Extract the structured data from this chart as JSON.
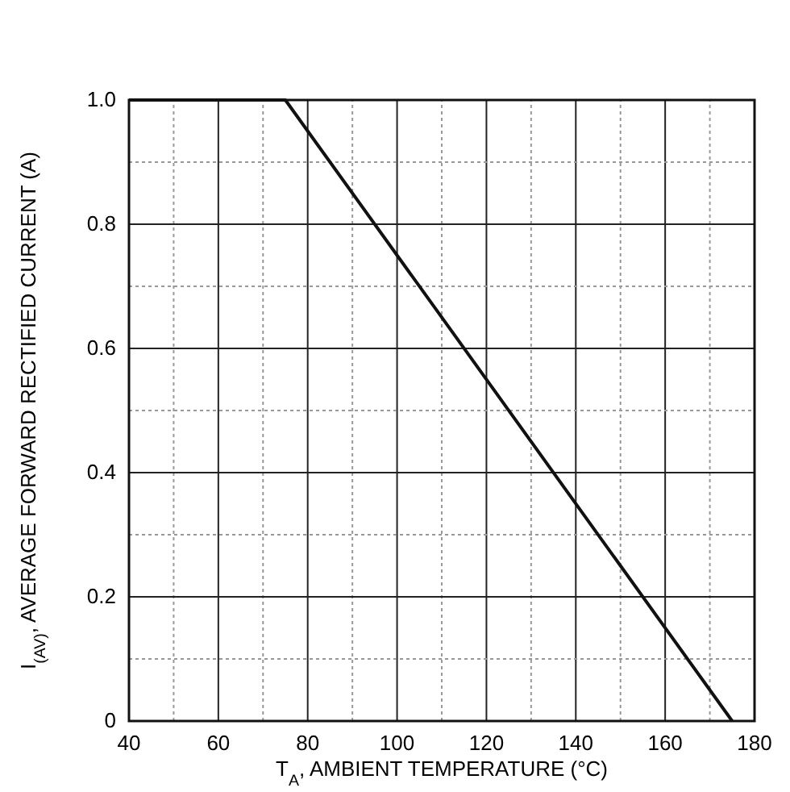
{
  "chart_data": {
    "type": "line",
    "xlabel": "T$_{A}$, AMBIENT TEMPERATURE (°C)",
    "ylabel": "I$_{(AV)}$, AVERAGE FORWARD RECTIFIED CURRENT (A)",
    "x": [
      40,
      75,
      175
    ],
    "series": [
      {
        "color": "#111111",
        "values": [
          1.0,
          1.0,
          0
        ]
      }
    ],
    "xlim": [
      40,
      180
    ],
    "xticks": [
      40,
      {
        "value": 50,
        "label": null
      },
      60,
      {
        "value": 70,
        "label": null
      },
      80,
      {
        "value": 90,
        "label": null
      },
      100,
      {
        "value": 110,
        "label": null
      },
      120,
      {
        "value": 130,
        "label": null
      },
      140,
      {
        "value": 150,
        "label": null
      },
      160,
      {
        "value": 170,
        "label": null
      },
      180
    ],
    "ylim": [
      0,
      1.0
    ],
    "yticks": [
      {
        "value": 0,
        "label": "0"
      },
      {
        "value": 0.1,
        "label": null
      },
      0.2,
      {
        "value": 0.3,
        "label": null
      },
      0.4,
      {
        "value": 0.5,
        "label": null
      },
      0.6,
      {
        "value": 0.7,
        "label": null
      },
      0.8,
      {
        "value": 0.9,
        "label": null
      },
      {
        "value": 1.0,
        "label": "1.0"
      }
    ],
    "grid": true,
    "marker": "none",
    "line_style": "solid"
  }
}
